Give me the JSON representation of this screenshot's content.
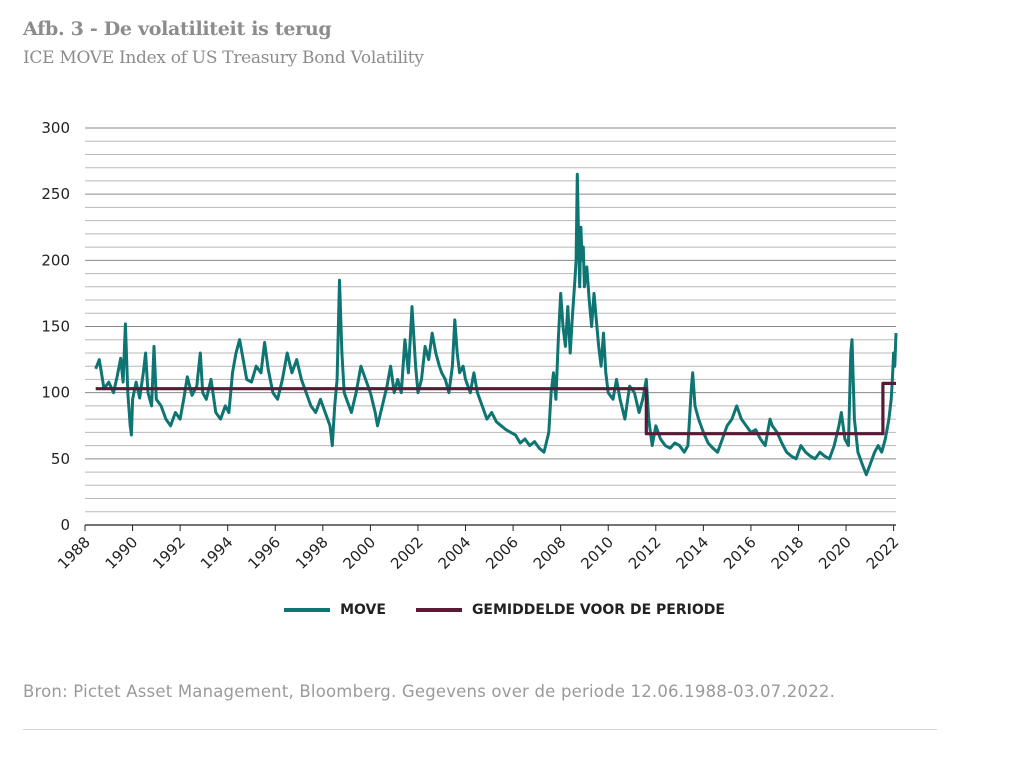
{
  "header": {
    "title": "Afb. 3 - De volatiliteit is terug",
    "subtitle": "ICE MOVE Index of US Treasury Bond Volatility"
  },
  "source": "Bron: Pictet Asset Management, Bloomberg. Gegevens over de periode 12.06.1988-03.07.2022.",
  "chart_data": {
    "type": "line",
    "title": "ICE MOVE Index of US Treasury Bond Volatility",
    "xlabel": "",
    "ylabel": "",
    "xlim": [
      1988,
      2022.1
    ],
    "ylim": [
      0,
      300
    ],
    "grid": true,
    "legend_position": "bottom",
    "x_ticks": [
      "1988",
      "1990",
      "1992",
      "1994",
      "1996",
      "1998",
      "2000",
      "2002",
      "2004",
      "2006",
      "2008",
      "2010",
      "2012",
      "2014",
      "2016",
      "2018",
      "2020",
      "2022"
    ],
    "y_ticks": [
      "0",
      "50",
      "100",
      "150",
      "200",
      "250",
      "300"
    ],
    "series": [
      {
        "name": "MOVE",
        "color": "#0e7573",
        "points": [
          [
            1988.45,
            118
          ],
          [
            1988.6,
            125
          ],
          [
            1988.8,
            103
          ],
          [
            1989.0,
            108
          ],
          [
            1989.2,
            100
          ],
          [
            1989.35,
            112
          ],
          [
            1989.5,
            126
          ],
          [
            1989.6,
            108
          ],
          [
            1989.7,
            152
          ],
          [
            1989.8,
            100
          ],
          [
            1989.9,
            75
          ],
          [
            1989.95,
            68
          ],
          [
            1990.0,
            95
          ],
          [
            1990.15,
            108
          ],
          [
            1990.3,
            96
          ],
          [
            1990.45,
            115
          ],
          [
            1990.55,
            130
          ],
          [
            1990.65,
            100
          ],
          [
            1990.8,
            90
          ],
          [
            1990.9,
            135
          ],
          [
            1991.0,
            95
          ],
          [
            1991.2,
            90
          ],
          [
            1991.4,
            80
          ],
          [
            1991.6,
            75
          ],
          [
            1991.8,
            85
          ],
          [
            1992.0,
            80
          ],
          [
            1992.15,
            95
          ],
          [
            1992.3,
            112
          ],
          [
            1992.5,
            98
          ],
          [
            1992.7,
            105
          ],
          [
            1992.85,
            130
          ],
          [
            1992.95,
            100
          ],
          [
            1993.1,
            95
          ],
          [
            1993.3,
            110
          ],
          [
            1993.5,
            85
          ],
          [
            1993.7,
            80
          ],
          [
            1993.9,
            90
          ],
          [
            1994.05,
            85
          ],
          [
            1994.2,
            115
          ],
          [
            1994.35,
            130
          ],
          [
            1994.5,
            140
          ],
          [
            1994.65,
            125
          ],
          [
            1994.8,
            110
          ],
          [
            1995.0,
            108
          ],
          [
            1995.2,
            120
          ],
          [
            1995.4,
            115
          ],
          [
            1995.55,
            138
          ],
          [
            1995.7,
            118
          ],
          [
            1995.9,
            100
          ],
          [
            1996.1,
            95
          ],
          [
            1996.3,
            110
          ],
          [
            1996.5,
            130
          ],
          [
            1996.7,
            115
          ],
          [
            1996.9,
            125
          ],
          [
            1997.1,
            110
          ],
          [
            1997.3,
            100
          ],
          [
            1997.5,
            90
          ],
          [
            1997.7,
            85
          ],
          [
            1997.9,
            95
          ],
          [
            1998.1,
            85
          ],
          [
            1998.3,
            75
          ],
          [
            1998.4,
            60
          ],
          [
            1998.5,
            90
          ],
          [
            1998.6,
            110
          ],
          [
            1998.7,
            185
          ],
          [
            1998.8,
            130
          ],
          [
            1998.9,
            100
          ],
          [
            1999.0,
            95
          ],
          [
            1999.2,
            85
          ],
          [
            1999.4,
            100
          ],
          [
            1999.6,
            120
          ],
          [
            1999.8,
            110
          ],
          [
            2000.0,
            100
          ],
          [
            2000.2,
            85
          ],
          [
            2000.3,
            75
          ],
          [
            2000.5,
            90
          ],
          [
            2000.7,
            105
          ],
          [
            2000.85,
            120
          ],
          [
            2001.0,
            100
          ],
          [
            2001.15,
            110
          ],
          [
            2001.3,
            100
          ],
          [
            2001.45,
            140
          ],
          [
            2001.6,
            115
          ],
          [
            2001.75,
            165
          ],
          [
            2001.9,
            120
          ],
          [
            2002.0,
            100
          ],
          [
            2002.15,
            110
          ],
          [
            2002.3,
            135
          ],
          [
            2002.45,
            125
          ],
          [
            2002.6,
            145
          ],
          [
            2002.75,
            130
          ],
          [
            2002.9,
            120
          ],
          [
            2003.0,
            115
          ],
          [
            2003.15,
            110
          ],
          [
            2003.3,
            100
          ],
          [
            2003.45,
            120
          ],
          [
            2003.55,
            155
          ],
          [
            2003.65,
            130
          ],
          [
            2003.75,
            115
          ],
          [
            2003.9,
            120
          ],
          [
            2004.0,
            110
          ],
          [
            2004.2,
            100
          ],
          [
            2004.35,
            115
          ],
          [
            2004.5,
            100
          ],
          [
            2004.7,
            90
          ],
          [
            2004.9,
            80
          ],
          [
            2005.1,
            85
          ],
          [
            2005.3,
            78
          ],
          [
            2005.5,
            75
          ],
          [
            2005.7,
            72
          ],
          [
            2005.9,
            70
          ],
          [
            2006.1,
            68
          ],
          [
            2006.3,
            62
          ],
          [
            2006.5,
            65
          ],
          [
            2006.7,
            60
          ],
          [
            2006.9,
            63
          ],
          [
            2007.1,
            58
          ],
          [
            2007.3,
            55
          ],
          [
            2007.5,
            70
          ],
          [
            2007.6,
            100
          ],
          [
            2007.7,
            115
          ],
          [
            2007.8,
            95
          ],
          [
            2007.9,
            140
          ],
          [
            2008.0,
            175
          ],
          [
            2008.1,
            150
          ],
          [
            2008.2,
            135
          ],
          [
            2008.3,
            165
          ],
          [
            2008.4,
            130
          ],
          [
            2008.5,
            160
          ],
          [
            2008.6,
            185
          ],
          [
            2008.65,
            200
          ],
          [
            2008.7,
            265
          ],
          [
            2008.75,
            220
          ],
          [
            2008.8,
            180
          ],
          [
            2008.85,
            225
          ],
          [
            2008.9,
            200
          ],
          [
            2008.95,
            210
          ],
          [
            2009.0,
            180
          ],
          [
            2009.1,
            195
          ],
          [
            2009.2,
            170
          ],
          [
            2009.3,
            150
          ],
          [
            2009.4,
            175
          ],
          [
            2009.5,
            155
          ],
          [
            2009.6,
            135
          ],
          [
            2009.7,
            120
          ],
          [
            2009.8,
            145
          ],
          [
            2009.9,
            115
          ],
          [
            2010.0,
            100
          ],
          [
            2010.2,
            95
          ],
          [
            2010.35,
            110
          ],
          [
            2010.5,
            95
          ],
          [
            2010.7,
            80
          ],
          [
            2010.9,
            105
          ],
          [
            2011.1,
            100
          ],
          [
            2011.3,
            85
          ],
          [
            2011.45,
            95
          ],
          [
            2011.6,
            110
          ],
          [
            2011.7,
            80
          ],
          [
            2011.85,
            60
          ],
          [
            2012.0,
            75
          ],
          [
            2012.2,
            65
          ],
          [
            2012.4,
            60
          ],
          [
            2012.6,
            58
          ],
          [
            2012.8,
            62
          ],
          [
            2013.0,
            60
          ],
          [
            2013.2,
            55
          ],
          [
            2013.35,
            60
          ],
          [
            2013.5,
            105
          ],
          [
            2013.55,
            115
          ],
          [
            2013.65,
            90
          ],
          [
            2013.8,
            80
          ],
          [
            2014.0,
            70
          ],
          [
            2014.2,
            62
          ],
          [
            2014.4,
            58
          ],
          [
            2014.6,
            55
          ],
          [
            2014.8,
            65
          ],
          [
            2015.0,
            75
          ],
          [
            2015.2,
            80
          ],
          [
            2015.4,
            90
          ],
          [
            2015.6,
            80
          ],
          [
            2015.8,
            75
          ],
          [
            2016.0,
            70
          ],
          [
            2016.2,
            72
          ],
          [
            2016.4,
            65
          ],
          [
            2016.6,
            60
          ],
          [
            2016.8,
            80
          ],
          [
            2016.9,
            75
          ],
          [
            2017.1,
            70
          ],
          [
            2017.3,
            62
          ],
          [
            2017.5,
            55
          ],
          [
            2017.7,
            52
          ],
          [
            2017.9,
            50
          ],
          [
            2018.1,
            60
          ],
          [
            2018.3,
            55
          ],
          [
            2018.5,
            52
          ],
          [
            2018.7,
            50
          ],
          [
            2018.9,
            55
          ],
          [
            2019.1,
            52
          ],
          [
            2019.3,
            50
          ],
          [
            2019.5,
            60
          ],
          [
            2019.7,
            75
          ],
          [
            2019.8,
            85
          ],
          [
            2019.95,
            65
          ],
          [
            2020.1,
            60
          ],
          [
            2020.2,
            130
          ],
          [
            2020.25,
            140
          ],
          [
            2020.35,
            80
          ],
          [
            2020.5,
            55
          ],
          [
            2020.7,
            45
          ],
          [
            2020.85,
            38
          ],
          [
            2021.0,
            45
          ],
          [
            2021.2,
            55
          ],
          [
            2021.35,
            60
          ],
          [
            2021.5,
            55
          ],
          [
            2021.65,
            65
          ],
          [
            2021.8,
            80
          ],
          [
            2021.9,
            95
          ],
          [
            2021.95,
            110
          ],
          [
            2022.0,
            130
          ],
          [
            2022.05,
            120
          ],
          [
            2022.1,
            145
          ]
        ]
      },
      {
        "name": "GEMIDDELDE VOOR DE PERIODE",
        "color": "#5a1a36",
        "points": [
          [
            1988.45,
            103
          ],
          [
            2011.6,
            103
          ],
          [
            2011.6,
            69
          ],
          [
            2021.55,
            69
          ],
          [
            2021.55,
            107
          ],
          [
            2022.1,
            107
          ]
        ]
      }
    ]
  }
}
